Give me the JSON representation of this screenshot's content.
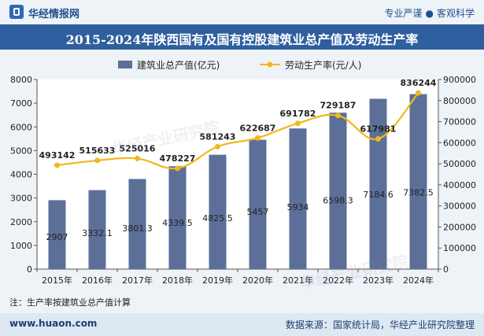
{
  "header": {
    "brand": "华经情报网",
    "tagline_left": "专业严谨",
    "tagline_sep": "●",
    "tagline_right": "客观科学"
  },
  "chart_data": {
    "type": "bar+line",
    "title": "2015-2024年陕西国有及国有控股建筑业总产值及劳动生产率",
    "categories": [
      "2015年",
      "2016年",
      "2017年",
      "2018年",
      "2019年",
      "2020年",
      "2021年",
      "2022年",
      "2023年",
      "2024年"
    ],
    "series": [
      {
        "name": "建筑业总产值(亿元)",
        "type": "bar",
        "axis": "left",
        "values": [
          2907,
          3332.1,
          3801.3,
          4339.5,
          4825.5,
          5457,
          5934,
          6598.3,
          7184.6,
          7382.5
        ],
        "labels": [
          "2907",
          "3332.1",
          "3801.3",
          "4339.5",
          "4825.5",
          "5457",
          "5934",
          "6598.3",
          "7184.6",
          "7382.5"
        ]
      },
      {
        "name": "劳动生产率(元/人)",
        "type": "line",
        "axis": "right",
        "values": [
          493142,
          515633,
          525016,
          478227,
          581243,
          622687,
          691782,
          729187,
          617981,
          836244
        ],
        "labels": [
          "493142",
          "515633",
          "525016",
          "478227",
          "581243",
          "622687",
          "691782",
          "729187",
          "617981",
          "836244"
        ]
      }
    ],
    "y_left": {
      "min": 0,
      "max": 8000,
      "step": 1000,
      "ticks": [
        "0",
        "1000",
        "2000",
        "3000",
        "4000",
        "5000",
        "6000",
        "7000",
        "8000"
      ]
    },
    "y_right": {
      "min": 0,
      "max": 900000,
      "step": 100000,
      "ticks": [
        "0",
        "100000",
        "200000",
        "300000",
        "400000",
        "500000",
        "600000",
        "700000",
        "800000",
        "900000"
      ]
    },
    "legend_position": "top-center",
    "colors": {
      "bar": "#5c6f99",
      "line": "#f0b81c",
      "axis": "#555555",
      "text": "#222222"
    }
  },
  "footnote": "注：生产率按建筑业总产值计算",
  "footer": {
    "site": "www.huaon.com",
    "source": "数据来源：国家统计局，华经产业研究院整理"
  }
}
